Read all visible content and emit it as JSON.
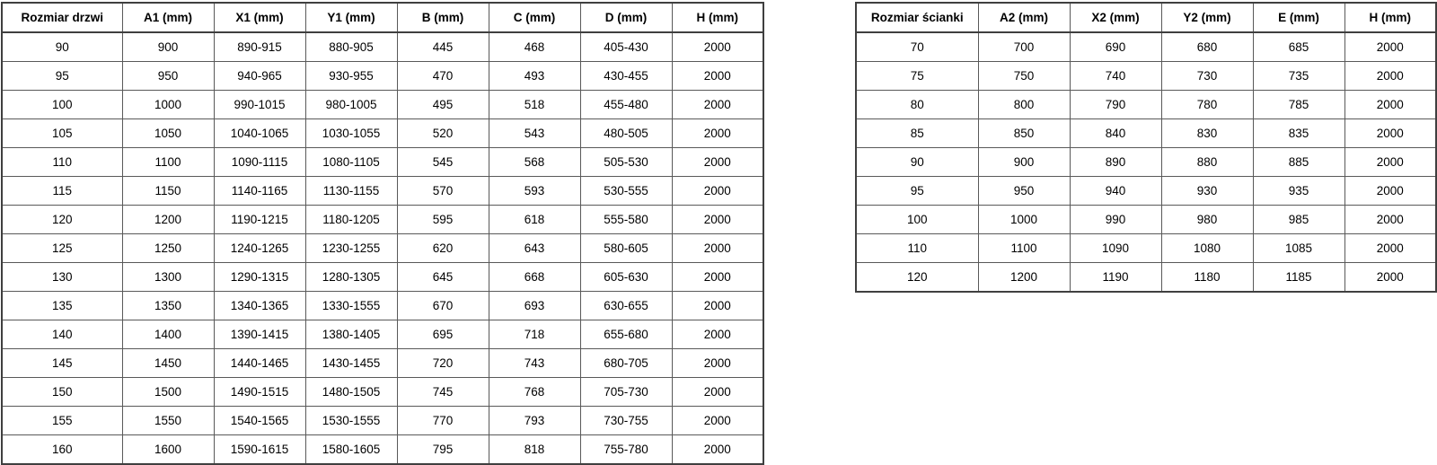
{
  "tables": [
    {
      "id": "door",
      "headers": [
        "Rozmiar drzwi",
        "A1 (mm)",
        "X1 (mm)",
        "Y1 (mm)",
        "B (mm)",
        "C (mm)",
        "D (mm)",
        "H (mm)"
      ],
      "rows": [
        [
          "90",
          "900",
          "890-915",
          "880-905",
          "445",
          "468",
          "405-430",
          "2000"
        ],
        [
          "95",
          "950",
          "940-965",
          "930-955",
          "470",
          "493",
          "430-455",
          "2000"
        ],
        [
          "100",
          "1000",
          "990-1015",
          "980-1005",
          "495",
          "518",
          "455-480",
          "2000"
        ],
        [
          "105",
          "1050",
          "1040-1065",
          "1030-1055",
          "520",
          "543",
          "480-505",
          "2000"
        ],
        [
          "110",
          "1100",
          "1090-1115",
          "1080-1105",
          "545",
          "568",
          "505-530",
          "2000"
        ],
        [
          "115",
          "1150",
          "1140-1165",
          "1130-1155",
          "570",
          "593",
          "530-555",
          "2000"
        ],
        [
          "120",
          "1200",
          "1190-1215",
          "1180-1205",
          "595",
          "618",
          "555-580",
          "2000"
        ],
        [
          "125",
          "1250",
          "1240-1265",
          "1230-1255",
          "620",
          "643",
          "580-605",
          "2000"
        ],
        [
          "130",
          "1300",
          "1290-1315",
          "1280-1305",
          "645",
          "668",
          "605-630",
          "2000"
        ],
        [
          "135",
          "1350",
          "1340-1365",
          "1330-1555",
          "670",
          "693",
          "630-655",
          "2000"
        ],
        [
          "140",
          "1400",
          "1390-1415",
          "1380-1405",
          "695",
          "718",
          "655-680",
          "2000"
        ],
        [
          "145",
          "1450",
          "1440-1465",
          "1430-1455",
          "720",
          "743",
          "680-705",
          "2000"
        ],
        [
          "150",
          "1500",
          "1490-1515",
          "1480-1505",
          "745",
          "768",
          "705-730",
          "2000"
        ],
        [
          "155",
          "1550",
          "1540-1565",
          "1530-1555",
          "770",
          "793",
          "730-755",
          "2000"
        ],
        [
          "160",
          "1600",
          "1590-1615",
          "1580-1605",
          "795",
          "818",
          "755-780",
          "2000"
        ]
      ]
    },
    {
      "id": "wall",
      "headers": [
        "Rozmiar ścianki",
        "A2 (mm)",
        "X2 (mm)",
        "Y2 (mm)",
        "E (mm)",
        "H (mm)"
      ],
      "rows": [
        [
          "70",
          "700",
          "690",
          "680",
          "685",
          "2000"
        ],
        [
          "75",
          "750",
          "740",
          "730",
          "735",
          "2000"
        ],
        [
          "80",
          "800",
          "790",
          "780",
          "785",
          "2000"
        ],
        [
          "85",
          "850",
          "840",
          "830",
          "835",
          "2000"
        ],
        [
          "90",
          "900",
          "890",
          "880",
          "885",
          "2000"
        ],
        [
          "95",
          "950",
          "940",
          "930",
          "935",
          "2000"
        ],
        [
          "100",
          "1000",
          "990",
          "980",
          "985",
          "2000"
        ],
        [
          "110",
          "1100",
          "1090",
          "1080",
          "1085",
          "2000"
        ],
        [
          "120",
          "1200",
          "1190",
          "1180",
          "1185",
          "2000"
        ]
      ]
    }
  ]
}
